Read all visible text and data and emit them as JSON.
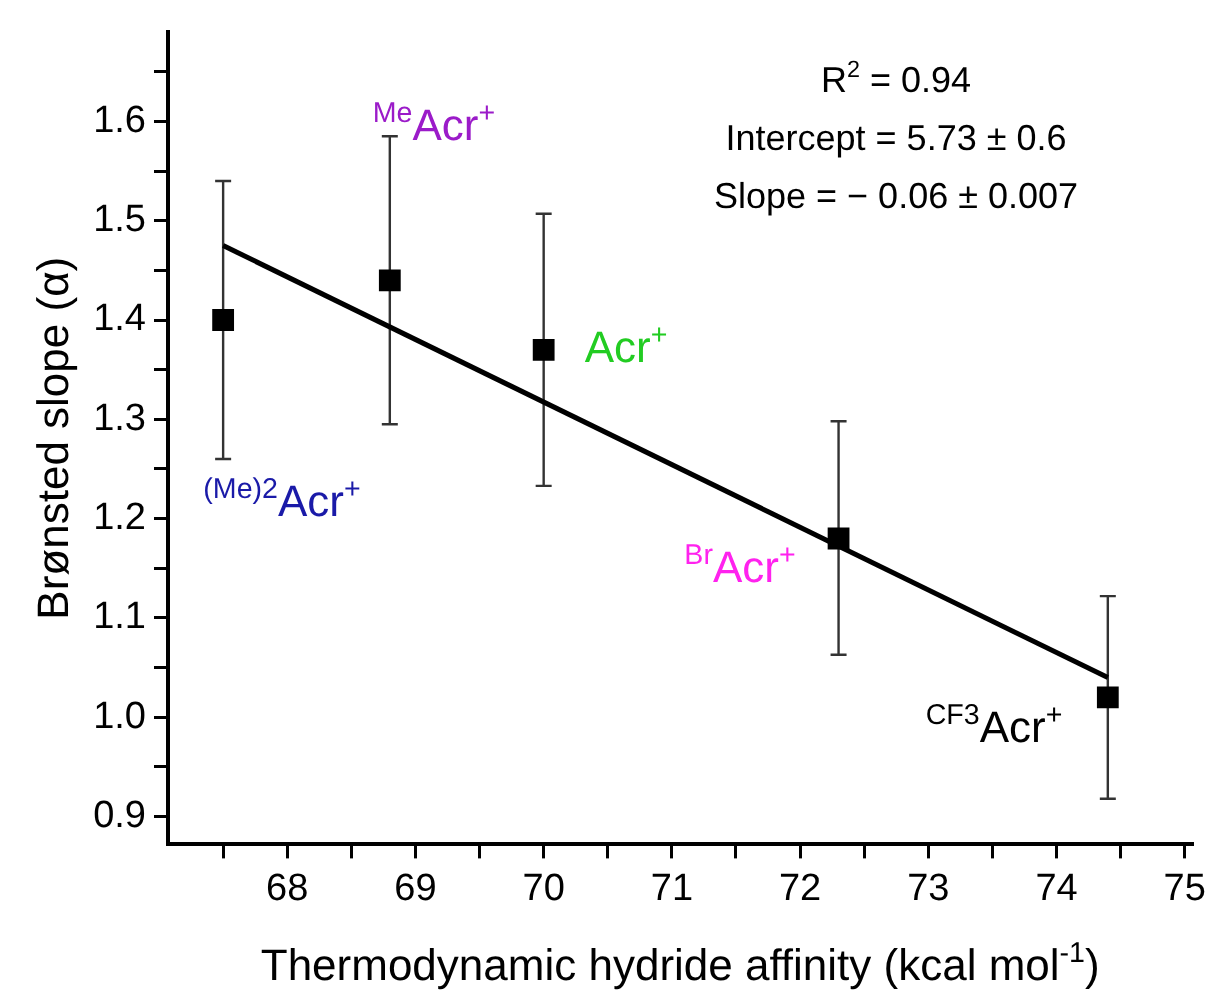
{
  "chart_data": {
    "type": "scatter",
    "xlabel": "Thermodynamic hydride affinity (kcal mol$^{-1}$)",
    "ylabel": "Brønsted slope (α)",
    "xlim": [
      67.07,
      75.06
    ],
    "ylim": [
      0.872,
      1.69
    ],
    "xticks": [
      {
        "value": 67.5,
        "label": null
      },
      68,
      {
        "value": 68.5,
        "label": null
      },
      69,
      {
        "value": 69.5,
        "label": null
      },
      70,
      {
        "value": 70.5,
        "label": null
      },
      71,
      {
        "value": 71.5,
        "label": null
      },
      72,
      {
        "value": 72.5,
        "label": null
      },
      73,
      {
        "value": 73.5,
        "label": null
      },
      74,
      {
        "value": 74.5,
        "label": null
      },
      75
    ],
    "yticks": [
      0.9,
      {
        "value": 0.95,
        "label": null
      },
      {
        "value": 1.0,
        "label": "1.0"
      },
      {
        "value": 1.05,
        "label": null
      },
      1.1,
      {
        "value": 1.15,
        "label": null
      },
      1.2,
      {
        "value": 1.25,
        "label": null
      },
      1.3,
      {
        "value": 1.35,
        "label": null
      },
      1.4,
      {
        "value": 1.45,
        "label": null
      },
      1.5,
      {
        "value": 1.55,
        "label": null
      },
      1.6,
      {
        "value": 1.65,
        "label": null
      }
    ],
    "grid": false,
    "legend": false,
    "marker": "square",
    "series": [
      {
        "color": "#000000",
        "x": [
          67.5,
          68.8,
          70.0,
          72.3,
          74.4
        ],
        "values": [
          1.4,
          1.44,
          1.37,
          1.18,
          1.02
        ],
        "errors": [
          [
            1.26,
            1.54
          ],
          [
            1.295,
            1.585
          ],
          [
            1.233,
            1.507
          ],
          [
            1.063,
            1.298
          ],
          [
            0.918,
            1.122
          ]
        ]
      },
      {
        "type": "line",
        "color": "#000000",
        "x": [
          67.5,
          74.4
        ],
        "values": [
          1.475,
          1.04
        ],
        "marker": "none",
        "line_style": "solid"
      }
    ],
    "annotations": [
      "$^{(Me)2}$Acr$^{+}$",
      "$^{Me}$Acr$^{+}$",
      "Acr$^{+}$",
      "$^{Br}$Acr$^{+}$",
      "$^{CF3}$Acr$^{+}$",
      "R$^{2}$ = 0.94",
      "Intercept = 5.73 ± 0.6",
      "Slope = − 0.06 ± 0.007"
    ]
  }
}
